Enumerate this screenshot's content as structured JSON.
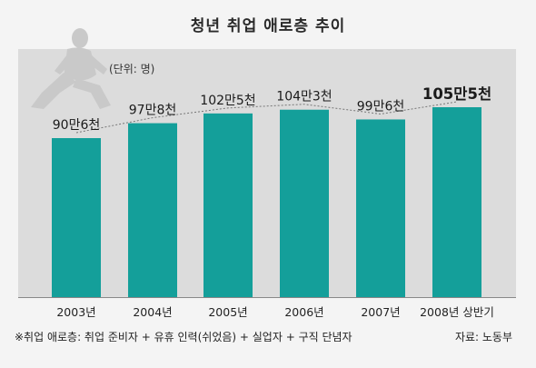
{
  "title": "청년 취업 애로층 추이",
  "unit": "(단위: 명)",
  "footnote": "※취업 애로층: 취업 준비자 + 유휴 인력(쉬었음) + 실업자 + 구직 단념자",
  "source": "자료: 노동부",
  "colors": {
    "bar": "#149f9a",
    "panel": "#dcdcdc",
    "connector": "#777777"
  },
  "chart_data": {
    "type": "bar",
    "title": "청년 취업 애로층 추이",
    "categories": [
      "2003년",
      "2004년",
      "2005년",
      "2006년",
      "2007년",
      "2008년 상반기"
    ],
    "values": [
      906000,
      978000,
      1025000,
      1043000,
      996000,
      1055000
    ],
    "data_labels": [
      "90만6천",
      "97만8천",
      "102만5천",
      "104만3천",
      "99만6천",
      "105만5천"
    ],
    "ylabel": "",
    "xlabel": "",
    "unit": "명",
    "grid": false,
    "legend": "none",
    "connector_line": "dashed"
  }
}
